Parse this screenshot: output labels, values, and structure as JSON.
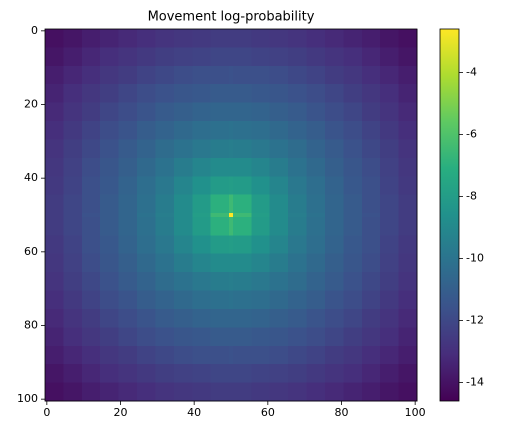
{
  "chart_data": {
    "type": "heatmap",
    "title": "Movement log-probability",
    "colormap": "viridis",
    "x_edges": [
      -0.5,
      4.5,
      9.5,
      14.5,
      19.5,
      24.5,
      29.5,
      34.5,
      39.5,
      44.5,
      49.5,
      50.5,
      55.5,
      60.5,
      65.5,
      70.5,
      75.5,
      80.5,
      85.5,
      90.5,
      95.5,
      100.5
    ],
    "y_edges": [
      -0.5,
      4.5,
      9.5,
      14.5,
      19.5,
      24.5,
      29.5,
      34.5,
      39.5,
      44.5,
      49.5,
      50.5,
      55.5,
      60.5,
      65.5,
      70.5,
      75.5,
      80.5,
      85.5,
      90.5,
      95.5,
      100.5
    ],
    "z": [
      [
        -14.1,
        -13.9,
        -13.6,
        -13.4,
        -13.2,
        -13.0,
        -12.8,
        -12.7,
        -12.6,
        -12.5,
        -12.5,
        -12.5,
        -12.6,
        -12.7,
        -12.8,
        -13.0,
        -13.2,
        -13.4,
        -13.6,
        -13.9,
        -14.1
      ],
      [
        -13.9,
        -13.6,
        -13.3,
        -13.0,
        -12.8,
        -12.6,
        -12.4,
        -12.3,
        -12.2,
        -12.1,
        -12.1,
        -12.1,
        -12.2,
        -12.3,
        -12.4,
        -12.6,
        -12.8,
        -13.0,
        -13.3,
        -13.6,
        -13.9
      ],
      [
        -13.6,
        -13.3,
        -13.0,
        -12.7,
        -12.5,
        -12.2,
        -12.0,
        -11.8,
        -11.7,
        -11.7,
        -11.6,
        -11.7,
        -11.7,
        -11.8,
        -12.0,
        -12.2,
        -12.5,
        -12.7,
        -13.0,
        -13.3,
        -13.6
      ],
      [
        -13.4,
        -13.0,
        -12.7,
        -12.4,
        -12.1,
        -11.8,
        -11.6,
        -11.4,
        -11.3,
        -11.2,
        -11.2,
        -11.2,
        -11.3,
        -11.4,
        -11.6,
        -11.8,
        -12.1,
        -12.4,
        -12.7,
        -13.0,
        -13.4
      ],
      [
        -13.2,
        -12.8,
        -12.5,
        -12.1,
        -11.8,
        -11.5,
        -11.2,
        -11.0,
        -10.8,
        -10.7,
        -10.7,
        -10.7,
        -10.8,
        -11.0,
        -11.2,
        -11.5,
        -11.8,
        -12.1,
        -12.5,
        -12.8,
        -13.2
      ],
      [
        -13.0,
        -12.6,
        -12.2,
        -11.8,
        -11.5,
        -11.1,
        -10.8,
        -10.5,
        -10.3,
        -10.2,
        -10.1,
        -10.2,
        -10.3,
        -10.5,
        -10.8,
        -11.1,
        -11.5,
        -11.8,
        -12.2,
        -12.6,
        -13.0
      ],
      [
        -12.8,
        -12.4,
        -12.0,
        -11.6,
        -11.2,
        -10.8,
        -10.4,
        -10.1,
        -9.8,
        -9.6,
        -9.5,
        -9.6,
        -9.8,
        -10.1,
        -10.4,
        -10.8,
        -11.2,
        -11.6,
        -12.0,
        -12.4,
        -12.8
      ],
      [
        -12.7,
        -12.3,
        -11.8,
        -11.4,
        -11.0,
        -10.5,
        -10.1,
        -9.6,
        -9.2,
        -8.9,
        -8.9,
        -8.9,
        -9.2,
        -9.6,
        -10.1,
        -10.5,
        -11.0,
        -11.4,
        -11.8,
        -12.3,
        -12.7
      ],
      [
        -12.6,
        -12.2,
        -11.7,
        -11.3,
        -10.8,
        -10.3,
        -9.8,
        -9.2,
        -8.6,
        -8.1,
        -8.0,
        -8.1,
        -8.6,
        -9.2,
        -9.8,
        -10.3,
        -10.8,
        -11.3,
        -11.7,
        -12.2,
        -12.6
      ],
      [
        -12.5,
        -12.1,
        -11.7,
        -11.2,
        -10.7,
        -10.2,
        -9.6,
        -8.9,
        -8.1,
        -7.0,
        -6.5,
        -7.0,
        -8.1,
        -8.9,
        -9.6,
        -10.2,
        -10.7,
        -11.2,
        -11.7,
        -12.1,
        -12.5
      ],
      [
        -12.5,
        -12.1,
        -11.6,
        -11.2,
        -10.7,
        -10.1,
        -9.5,
        -8.9,
        -8.0,
        -6.5,
        -2.6,
        -6.5,
        -8.0,
        -8.9,
        -9.5,
        -10.1,
        -10.7,
        -11.2,
        -11.6,
        -12.1,
        -12.5
      ],
      [
        -12.5,
        -12.1,
        -11.7,
        -11.2,
        -10.7,
        -10.2,
        -9.6,
        -8.9,
        -8.1,
        -7.0,
        -6.5,
        -7.0,
        -8.1,
        -8.9,
        -9.6,
        -10.2,
        -10.7,
        -11.2,
        -11.7,
        -12.1,
        -12.5
      ],
      [
        -12.6,
        -12.2,
        -11.7,
        -11.3,
        -10.8,
        -10.3,
        -9.8,
        -9.2,
        -8.6,
        -8.1,
        -8.0,
        -8.1,
        -8.6,
        -9.2,
        -9.8,
        -10.3,
        -10.8,
        -11.3,
        -11.7,
        -12.2,
        -12.6
      ],
      [
        -12.7,
        -12.3,
        -11.8,
        -11.4,
        -11.0,
        -10.5,
        -10.1,
        -9.6,
        -9.2,
        -8.9,
        -8.9,
        -8.9,
        -9.2,
        -9.6,
        -10.1,
        -10.5,
        -11.0,
        -11.4,
        -11.8,
        -12.3,
        -12.7
      ],
      [
        -12.8,
        -12.4,
        -12.0,
        -11.6,
        -11.2,
        -10.8,
        -10.4,
        -10.1,
        -9.8,
        -9.6,
        -9.5,
        -9.6,
        -9.8,
        -10.1,
        -10.4,
        -10.8,
        -11.2,
        -11.6,
        -12.0,
        -12.4,
        -12.8
      ],
      [
        -13.0,
        -12.6,
        -12.2,
        -11.8,
        -11.5,
        -11.1,
        -10.8,
        -10.5,
        -10.3,
        -10.2,
        -10.1,
        -10.2,
        -10.3,
        -10.5,
        -10.8,
        -11.1,
        -11.5,
        -11.8,
        -12.2,
        -12.6,
        -13.0
      ],
      [
        -13.2,
        -12.8,
        -12.5,
        -12.1,
        -11.8,
        -11.5,
        -11.2,
        -11.0,
        -10.8,
        -10.7,
        -10.7,
        -10.7,
        -10.8,
        -11.0,
        -11.2,
        -11.5,
        -11.8,
        -12.1,
        -12.5,
        -12.8,
        -13.2
      ],
      [
        -13.4,
        -13.0,
        -12.7,
        -12.4,
        -12.1,
        -11.8,
        -11.6,
        -11.4,
        -11.3,
        -11.2,
        -11.2,
        -11.2,
        -11.3,
        -11.4,
        -11.6,
        -11.8,
        -12.1,
        -12.4,
        -12.7,
        -13.0,
        -13.4
      ],
      [
        -13.6,
        -13.3,
        -13.0,
        -12.7,
        -12.5,
        -12.2,
        -12.0,
        -11.8,
        -11.7,
        -11.7,
        -11.6,
        -11.7,
        -11.7,
        -11.8,
        -12.0,
        -12.2,
        -12.5,
        -12.7,
        -13.0,
        -13.3,
        -13.6
      ],
      [
        -13.9,
        -13.6,
        -13.3,
        -13.0,
        -12.8,
        -12.6,
        -12.4,
        -12.3,
        -12.2,
        -12.1,
        -12.1,
        -12.1,
        -12.2,
        -12.3,
        -12.4,
        -12.6,
        -12.8,
        -13.0,
        -13.3,
        -13.6,
        -13.9
      ],
      [
        -14.1,
        -13.9,
        -13.6,
        -13.4,
        -13.2,
        -13.0,
        -12.8,
        -12.7,
        -12.6,
        -12.5,
        -12.5,
        -12.5,
        -12.6,
        -12.7,
        -12.8,
        -13.0,
        -13.2,
        -13.4,
        -13.6,
        -13.9,
        -14.1
      ]
    ],
    "xlim": [
      -0.5,
      100.5
    ],
    "ylim": [
      100.5,
      -0.5
    ],
    "xticks": [
      0,
      20,
      40,
      60,
      80,
      100
    ],
    "yticks": [
      0,
      20,
      40,
      60,
      80,
      100
    ],
    "clim": [
      -14.6,
      -2.6
    ],
    "cticks": [
      -14,
      -12,
      -10,
      -8,
      -6,
      -4
    ]
  }
}
